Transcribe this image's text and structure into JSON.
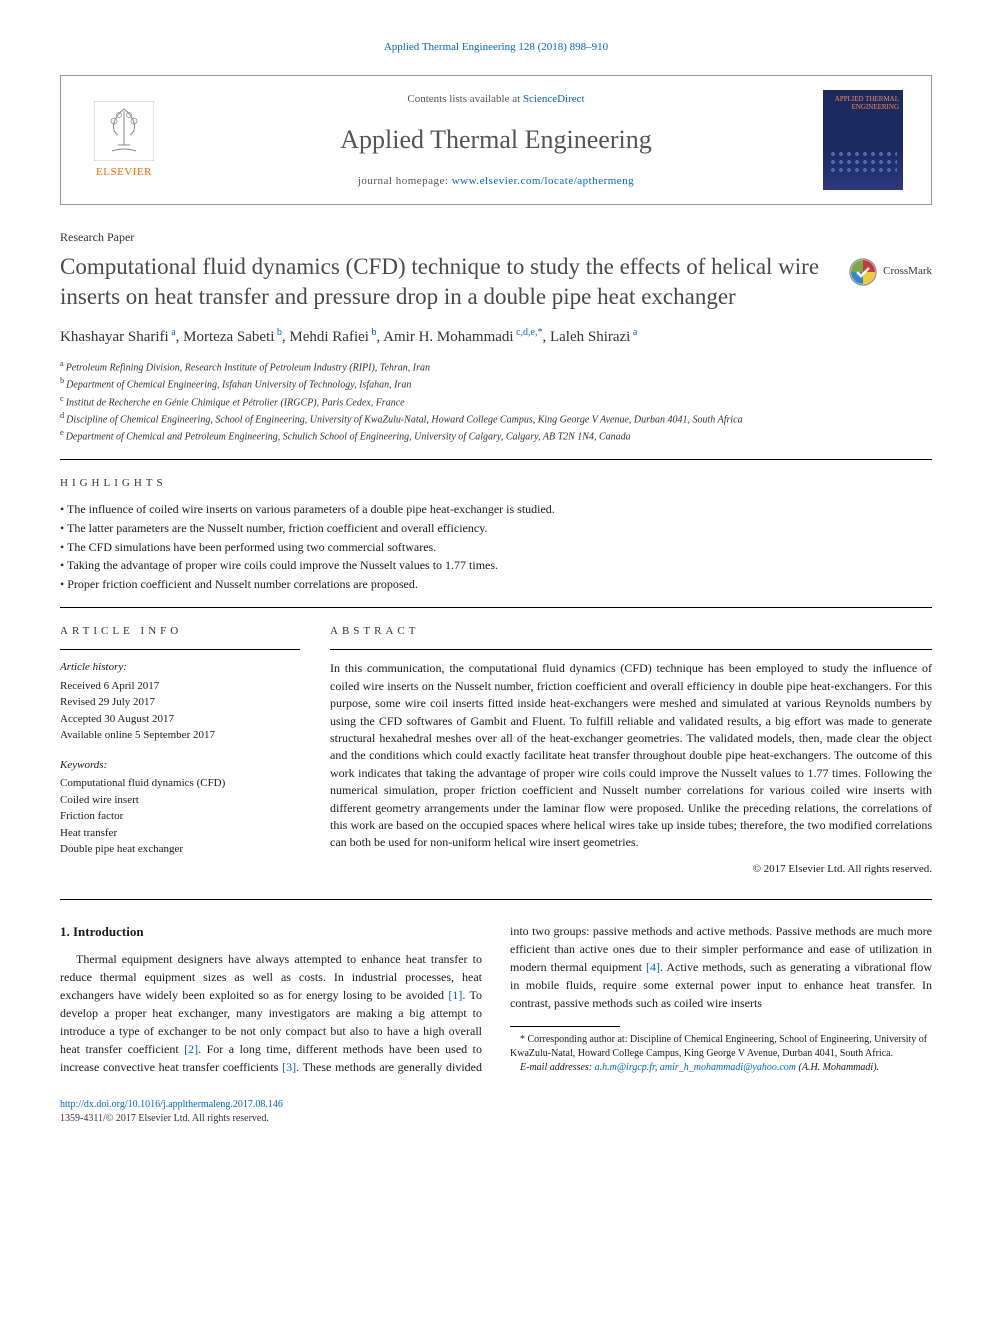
{
  "journal_ref": "Applied Thermal Engineering 128 (2018) 898–910",
  "header": {
    "contents_prefix": "Contents lists available at ",
    "contents_link": "ScienceDirect",
    "journal_name": "Applied Thermal Engineering",
    "homepage_prefix": "journal homepage: ",
    "homepage_url": "www.elsevier.com/locate/apthermeng",
    "publisher": "ELSEVIER",
    "cover_title": "APPLIED THERMAL ENGINEERING"
  },
  "paper_type": "Research Paper",
  "title": "Computational fluid dynamics (CFD) technique to study the effects of helical wire inserts on heat transfer and pressure drop in a double pipe heat exchanger",
  "crossmark_label": "CrossMark",
  "authors": [
    {
      "name": "Khashayar Sharifi",
      "aff": "a"
    },
    {
      "name": "Morteza Sabeti",
      "aff": "b"
    },
    {
      "name": "Mehdi Rafiei",
      "aff": "b"
    },
    {
      "name": "Amir H. Mohammadi",
      "aff": "c,d,e,*"
    },
    {
      "name": "Laleh Shirazi",
      "aff": "a"
    }
  ],
  "affiliations": [
    {
      "key": "a",
      "text": "Petroleum Refining Division, Research Institute of Petroleum Industry (RIPI), Tehran, Iran"
    },
    {
      "key": "b",
      "text": "Department of Chemical Engineering, Isfahan University of Technology, Isfahan, Iran"
    },
    {
      "key": "c",
      "text": "Institut de Recherche en Génie Chimique et Pétrolier (IRGCP), Paris Cedex, France"
    },
    {
      "key": "d",
      "text": "Discipline of Chemical Engineering, School of Engineering, University of KwaZulu-Natal, Howard College Campus, King George V Avenue, Durban 4041, South Africa"
    },
    {
      "key": "e",
      "text": "Department of Chemical and Petroleum Engineering, Schulich School of Engineering, University of Calgary, Calgary, AB T2N 1N4, Canada"
    }
  ],
  "highlights_label": "HIGHLIGHTS",
  "highlights": [
    "The influence of coiled wire inserts on various parameters of a double pipe heat-exchanger is studied.",
    "The latter parameters are the Nusselt number, friction coefficient and overall efficiency.",
    "The CFD simulations have been performed using two commercial softwares.",
    "Taking the advantage of proper wire coils could improve the Nusselt values to 1.77 times.",
    "Proper friction coefficient and Nusselt number correlations are proposed."
  ],
  "article_info_label": "ARTICLE INFO",
  "abstract_label": "ABSTRACT",
  "history_label": "Article history:",
  "history": [
    "Received 6 April 2017",
    "Revised 29 July 2017",
    "Accepted 30 August 2017",
    "Available online 5 September 2017"
  ],
  "keywords_label": "Keywords:",
  "keywords": [
    "Computational fluid dynamics (CFD)",
    "Coiled wire insert",
    "Friction factor",
    "Heat transfer",
    "Double pipe heat exchanger"
  ],
  "abstract": "In this communication, the computational fluid dynamics (CFD) technique has been employed to study the influence of coiled wire inserts on the Nusselt number, friction coefficient and overall efficiency in double pipe heat-exchangers. For this purpose, some wire coil inserts fitted inside heat-exchangers were meshed and simulated at various Reynolds numbers by using the CFD softwares of Gambit and Fluent. To fulfill reliable and validated results, a big effort was made to generate structural hexahedral meshes over all of the heat-exchanger geometries. The validated models, then, made clear the object and the conditions which could exactly facilitate heat transfer throughout double pipe heat-exchangers. The outcome of this work indicates that taking the advantage of proper wire coils could improve the Nusselt values to 1.77 times. Following the numerical simulation, proper friction coefficient and Nusselt number correlations for various coiled wire inserts with different geometry arrangements under the laminar flow were proposed. Unlike the preceding relations, the correlations of this work are based on the occupied spaces where helical wires take up inside tubes; therefore, the two modified correlations can both be used for non-uniform helical wire insert geometries.",
  "copyright": "© 2017 Elsevier Ltd. All rights reserved.",
  "intro_heading": "1. Introduction",
  "intro_col1_pre": "Thermal equipment designers have always attempted to enhance heat transfer to reduce thermal equipment sizes as well as costs. In industrial processes, heat exchangers have widely been exploited so as for energy losing to be avoided ",
  "ref1": "[1]",
  "intro_col1_post": ". To develop a",
  "intro_col2_a": "proper heat exchanger, many investigators are making a big attempt to introduce a type of exchanger to be not only compact but also to have a high overall heat transfer coefficient ",
  "ref2": "[2]",
  "intro_col2_b": ". For a long time, different methods have been used to increase convective heat transfer coefficients ",
  "ref3": "[3]",
  "intro_col2_c": ". These methods are generally divided into two groups: passive methods and active methods. Passive methods are much more efficient than active ones due to their simpler performance and ease of utilization in modern thermal equipment ",
  "ref4": "[4]",
  "intro_col2_d": ". Active methods, such as generating a vibrational flow in mobile fluids, require some external power input to enhance heat transfer. In contrast, passive methods such as coiled wire inserts",
  "corresponding": "* Corresponding author at: Discipline of Chemical Engineering, School of Engineering, University of KwaZulu-Natal, Howard College Campus, King George V Avenue, Durban 4041, South Africa.",
  "email_label": "E-mail addresses:",
  "email1": "a.h.m@irgcp.fr",
  "email2": "amir_h_mohammadi@yahoo.com",
  "email_person": " (A.H. Mohammadi).",
  "doi_url": "http://dx.doi.org/10.1016/j.applthermaleng.2017.08.146",
  "issn_line": "1359-4311/© 2017 Elsevier Ltd. All rights reserved.",
  "colors": {
    "link": "#0066cc",
    "publisher": "#ff6600",
    "cover_bg": "#1a2a5e",
    "text": "#1a1a1a"
  }
}
